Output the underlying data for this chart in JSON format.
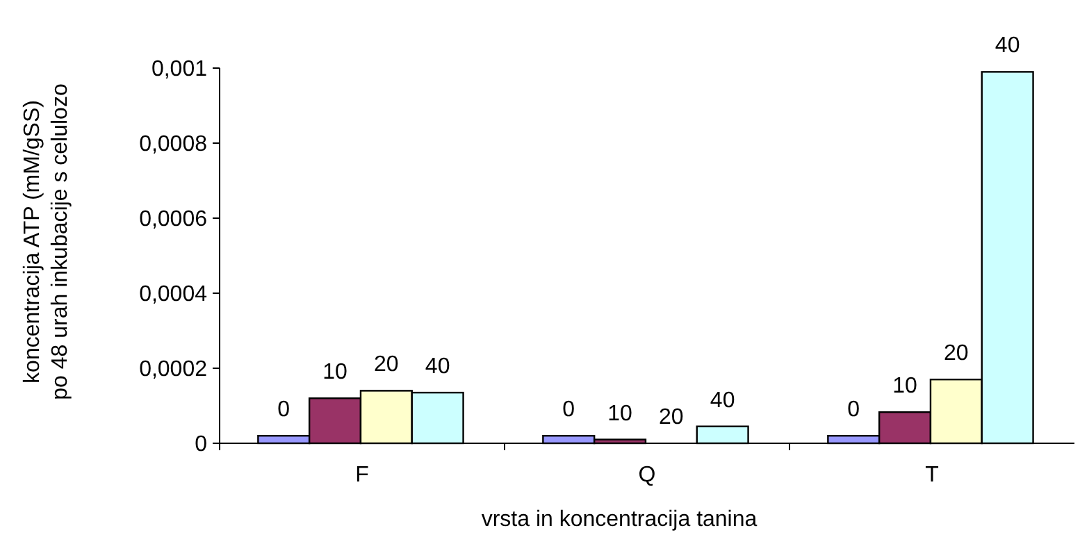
{
  "chart_data": {
    "type": "bar",
    "xlabel": "vrsta in koncentracija tanina",
    "ylabel": "koncentracija ATP (mM/gSS)\npo 48 urah inkubacije s celulozo",
    "categories": [
      "F",
      "Q",
      "T"
    ],
    "series": [
      {
        "name": "0",
        "color": "#9999ff",
        "values": [
          2e-05,
          2e-05,
          2e-05
        ]
      },
      {
        "name": "10",
        "color": "#993366",
        "values": [
          0.00012,
          1e-05,
          8.3e-05
        ]
      },
      {
        "name": "20",
        "color": "#ffffcc",
        "values": [
          0.00014,
          0,
          0.00017
        ]
      },
      {
        "name": "40",
        "color": "#ccffff",
        "values": [
          0.000135,
          4.5e-05,
          0.00099
        ]
      }
    ],
    "ylim": [
      0,
      0.001
    ],
    "yticks": [
      {
        "value": 0,
        "label": "0"
      },
      {
        "value": 0.0002,
        "label": "0,0002"
      },
      {
        "value": 0.0004,
        "label": "0,0004"
      },
      {
        "value": 0.0006,
        "label": "0,0006"
      },
      {
        "value": 0.0008,
        "label": "0,0008"
      },
      {
        "value": 0.001,
        "label": "0,001"
      }
    ],
    "grid": false,
    "legend": false
  }
}
